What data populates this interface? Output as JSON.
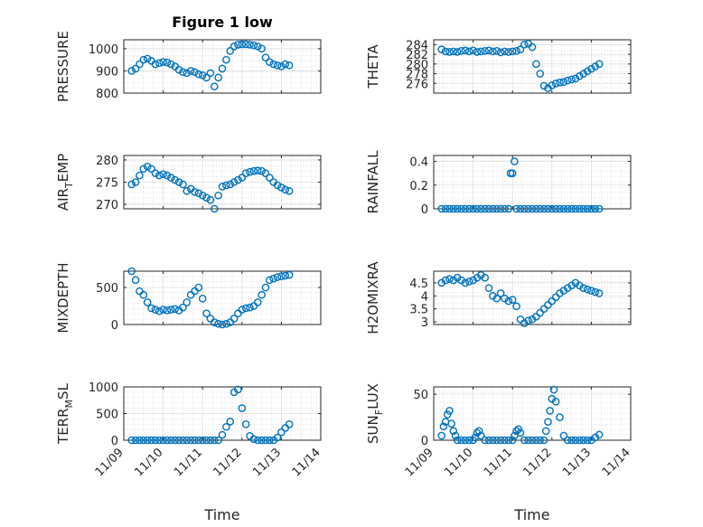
{
  "figure_title": "Figure 1 low",
  "marker_color": "#0072BD",
  "chart_data": [
    {
      "type": "scatter",
      "ylabel": "PRESSURE",
      "ylabel_sub": "",
      "ylim": [
        800,
        1040
      ],
      "yticks": [
        "800",
        "900",
        "1000"
      ],
      "xticklabels": [],
      "xlabel": "",
      "x": [
        9.2,
        9.3,
        9.4,
        9.5,
        9.6,
        9.7,
        9.8,
        9.9,
        10.0,
        10.1,
        10.2,
        10.3,
        10.4,
        10.5,
        10.6,
        10.7,
        10.8,
        10.9,
        11.0,
        11.1,
        11.2,
        11.3,
        11.4,
        11.5,
        11.6,
        11.7,
        11.8,
        11.9,
        12.0,
        12.1,
        12.2,
        12.3,
        12.4,
        12.5,
        12.6,
        12.7,
        12.8,
        12.9,
        13.0,
        13.1,
        13.2
      ],
      "y": [
        900,
        910,
        930,
        950,
        955,
        945,
        930,
        935,
        940,
        938,
        930,
        920,
        905,
        895,
        890,
        900,
        895,
        885,
        880,
        870,
        890,
        830,
        870,
        910,
        950,
        990,
        1010,
        1018,
        1020,
        1020,
        1018,
        1015,
        1010,
        1000,
        960,
        940,
        930,
        925,
        920,
        930,
        925
      ]
    },
    {
      "type": "scatter",
      "ylabel": "THETA",
      "ylabel_sub": "",
      "ylim": [
        274,
        285
      ],
      "yticks": [
        "276",
        "278",
        "280",
        "282",
        "284"
      ],
      "xticklabels": [],
      "xlabel": "",
      "x": [
        9.2,
        9.3,
        9.4,
        9.5,
        9.6,
        9.7,
        9.8,
        9.9,
        10.0,
        10.1,
        10.2,
        10.3,
        10.4,
        10.5,
        10.6,
        10.7,
        10.8,
        10.9,
        11.0,
        11.1,
        11.2,
        11.3,
        11.4,
        11.5,
        11.6,
        11.7,
        11.8,
        11.9,
        12.0,
        12.1,
        12.2,
        12.3,
        12.4,
        12.5,
        12.6,
        12.7,
        12.8,
        12.9,
        13.0,
        13.1,
        13.2
      ],
      "y": [
        283,
        282.6,
        282.5,
        282.6,
        282.5,
        282.7,
        282.8,
        282.6,
        282.8,
        282.5,
        282.6,
        282.7,
        282.8,
        282.6,
        282.7,
        282.4,
        282.6,
        282.5,
        282.6,
        282.7,
        283,
        284,
        284.2,
        283.5,
        280,
        278,
        275.5,
        275,
        275.6,
        276,
        276.2,
        276.3,
        276.6,
        276.8,
        277,
        277.5,
        278,
        278.5,
        279,
        279.5,
        280
      ]
    },
    {
      "type": "scatter",
      "ylabel": "AIR",
      "ylabel_sub": "T",
      "ylabel_suffix": "EMP",
      "ylim": [
        269,
        281
      ],
      "yticks": [
        "270",
        "275",
        "280"
      ],
      "xticklabels": [],
      "xlabel": "",
      "x": [
        9.2,
        9.3,
        9.4,
        9.5,
        9.6,
        9.7,
        9.8,
        9.9,
        10.0,
        10.1,
        10.2,
        10.3,
        10.4,
        10.5,
        10.6,
        10.7,
        10.8,
        10.9,
        11.0,
        11.1,
        11.2,
        11.3,
        11.4,
        11.5,
        11.6,
        11.7,
        11.8,
        11.9,
        12.0,
        12.1,
        12.2,
        12.3,
        12.4,
        12.5,
        12.6,
        12.7,
        12.8,
        12.9,
        13.0,
        13.1,
        13.2
      ],
      "y": [
        274.5,
        275,
        276.5,
        278,
        278.5,
        278,
        277,
        276.5,
        276.8,
        276.5,
        276,
        275.5,
        275,
        274.5,
        273,
        273.5,
        272.8,
        272.5,
        272,
        271.5,
        271,
        269,
        272,
        274,
        274.3,
        274.5,
        275,
        275.5,
        276,
        277,
        277.3,
        277.5,
        277.6,
        277.5,
        277,
        276,
        275,
        274.3,
        273.8,
        273.3,
        273
      ]
    },
    {
      "type": "scatter",
      "ylabel": "RAINFALL",
      "ylabel_sub": "",
      "ylim": [
        0,
        0.45
      ],
      "yticks": [
        "0",
        "0.2",
        "0.4"
      ],
      "xticklabels": [],
      "xlabel": "",
      "x": [
        9.2,
        9.3,
        9.4,
        9.5,
        9.6,
        9.7,
        9.8,
        9.9,
        10.0,
        10.1,
        10.2,
        10.3,
        10.4,
        10.5,
        10.6,
        10.7,
        10.8,
        10.9,
        10.95,
        11.0,
        11.05,
        11.1,
        11.2,
        11.3,
        11.4,
        11.5,
        11.6,
        11.7,
        11.8,
        11.9,
        12.0,
        12.1,
        12.2,
        12.3,
        12.4,
        12.5,
        12.6,
        12.7,
        12.8,
        12.9,
        13.0,
        13.1,
        13.2
      ],
      "y": [
        0,
        0,
        0,
        0,
        0,
        0,
        0,
        0,
        0,
        0,
        0,
        0,
        0,
        0,
        0,
        0,
        0,
        0,
        0.3,
        0.3,
        0.4,
        0,
        0,
        0,
        0,
        0,
        0,
        0,
        0,
        0,
        0,
        0,
        0,
        0,
        0,
        0,
        0,
        0,
        0,
        0,
        0,
        0,
        0
      ]
    },
    {
      "type": "scatter",
      "ylabel": "MIXDEPTH",
      "ylabel_sub": "",
      "ylim": [
        0,
        720
      ],
      "yticks": [
        "0",
        "500"
      ],
      "xticklabels": [],
      "xlabel": "",
      "x": [
        9.2,
        9.3,
        9.4,
        9.5,
        9.6,
        9.7,
        9.8,
        9.9,
        10.0,
        10.1,
        10.2,
        10.3,
        10.4,
        10.5,
        10.6,
        10.7,
        10.8,
        10.9,
        11.0,
        11.1,
        11.2,
        11.3,
        11.4,
        11.5,
        11.6,
        11.7,
        11.8,
        11.9,
        12.0,
        12.1,
        12.2,
        12.3,
        12.4,
        12.5,
        12.6,
        12.7,
        12.8,
        12.9,
        13.0,
        13.1,
        13.2
      ],
      "y": [
        720,
        600,
        450,
        400,
        300,
        220,
        200,
        180,
        200,
        190,
        200,
        210,
        190,
        230,
        300,
        400,
        450,
        500,
        350,
        150,
        80,
        30,
        10,
        0,
        10,
        30,
        80,
        150,
        200,
        220,
        230,
        250,
        300,
        400,
        500,
        600,
        620,
        640,
        650,
        660,
        670
      ]
    },
    {
      "type": "scatter",
      "ylabel": "H2OMIXRA",
      "ylabel_sub": "",
      "ylim": [
        2.9,
        4.95
      ],
      "yticks": [
        "3",
        "3.5",
        "4",
        "4.5"
      ],
      "xticklabels": [],
      "xlabel": "",
      "x": [
        9.2,
        9.3,
        9.4,
        9.5,
        9.6,
        9.7,
        9.8,
        9.9,
        10.0,
        10.1,
        10.2,
        10.3,
        10.4,
        10.5,
        10.6,
        10.7,
        10.8,
        10.9,
        11.0,
        11.1,
        11.2,
        11.3,
        11.4,
        11.5,
        11.6,
        11.7,
        11.8,
        11.9,
        12.0,
        12.1,
        12.2,
        12.3,
        12.4,
        12.5,
        12.6,
        12.7,
        12.8,
        12.9,
        13.0,
        13.1,
        13.2
      ],
      "y": [
        4.5,
        4.6,
        4.65,
        4.6,
        4.7,
        4.6,
        4.5,
        4.55,
        4.6,
        4.7,
        4.8,
        4.7,
        4.3,
        4.0,
        3.9,
        4.1,
        3.9,
        3.8,
        3.85,
        3.6,
        3.1,
        2.95,
        3.05,
        3.1,
        3.2,
        3.35,
        3.5,
        3.65,
        3.8,
        3.95,
        4.1,
        4.2,
        4.3,
        4.4,
        4.5,
        4.4,
        4.3,
        4.25,
        4.2,
        4.15,
        4.1
      ]
    },
    {
      "type": "scatter",
      "ylabel": "TERR",
      "ylabel_sub": "M",
      "ylabel_suffix": "SL",
      "ylim": [
        0,
        1000
      ],
      "yticks": [
        "0",
        "500",
        "1000"
      ],
      "xticklabels": [
        "11/09",
        "11/10",
        "11/11",
        "11/12",
        "11/13",
        "11/14"
      ],
      "xlabel": "Time",
      "x": [
        9.2,
        9.3,
        9.4,
        9.5,
        9.6,
        9.7,
        9.8,
        9.9,
        10.0,
        10.1,
        10.2,
        10.3,
        10.4,
        10.5,
        10.6,
        10.7,
        10.8,
        10.9,
        11.0,
        11.1,
        11.2,
        11.3,
        11.4,
        11.5,
        11.6,
        11.7,
        11.8,
        11.9,
        12.0,
        12.1,
        12.2,
        12.3,
        12.4,
        12.5,
        12.6,
        12.7,
        12.8,
        12.9,
        13.0,
        13.1,
        13.2
      ],
      "y": [
        0,
        0,
        0,
        0,
        0,
        0,
        0,
        0,
        0,
        0,
        0,
        0,
        0,
        0,
        0,
        0,
        0,
        0,
        0,
        0,
        0,
        0,
        0,
        100,
        250,
        350,
        900,
        950,
        600,
        300,
        80,
        20,
        0,
        0,
        0,
        0,
        0,
        50,
        150,
        230,
        300
      ]
    },
    {
      "type": "scatter",
      "ylabel": "SUN",
      "ylabel_sub": "F",
      "ylabel_suffix": "LUX",
      "ylim": [
        0,
        58
      ],
      "yticks": [
        "0",
        "50"
      ],
      "xticklabels": [
        "11/09",
        "11/10",
        "11/11",
        "11/12",
        "11/13",
        "11/14"
      ],
      "xlabel": "Time",
      "x": [
        9.2,
        9.25,
        9.3,
        9.35,
        9.4,
        9.45,
        9.5,
        9.55,
        9.6,
        9.7,
        9.8,
        9.9,
        10.0,
        10.05,
        10.1,
        10.15,
        10.2,
        10.3,
        10.4,
        10.5,
        10.6,
        10.7,
        10.8,
        10.9,
        11.0,
        11.05,
        11.1,
        11.15,
        11.2,
        11.3,
        11.4,
        11.5,
        11.6,
        11.7,
        11.8,
        11.85,
        11.9,
        11.95,
        12.0,
        12.05,
        12.1,
        12.2,
        12.3,
        12.4,
        12.5,
        12.6,
        12.7,
        12.8,
        12.9,
        13.0,
        13.1,
        13.2
      ],
      "y": [
        5,
        15,
        20,
        28,
        32,
        18,
        10,
        5,
        0,
        0,
        0,
        0,
        0,
        3,
        8,
        10,
        5,
        0,
        0,
        0,
        0,
        0,
        0,
        0,
        0,
        5,
        10,
        12,
        8,
        0,
        0,
        0,
        0,
        0,
        0,
        10,
        20,
        32,
        45,
        55,
        42,
        25,
        5,
        0,
        0,
        0,
        0,
        0,
        0,
        0,
        3,
        6
      ]
    }
  ]
}
